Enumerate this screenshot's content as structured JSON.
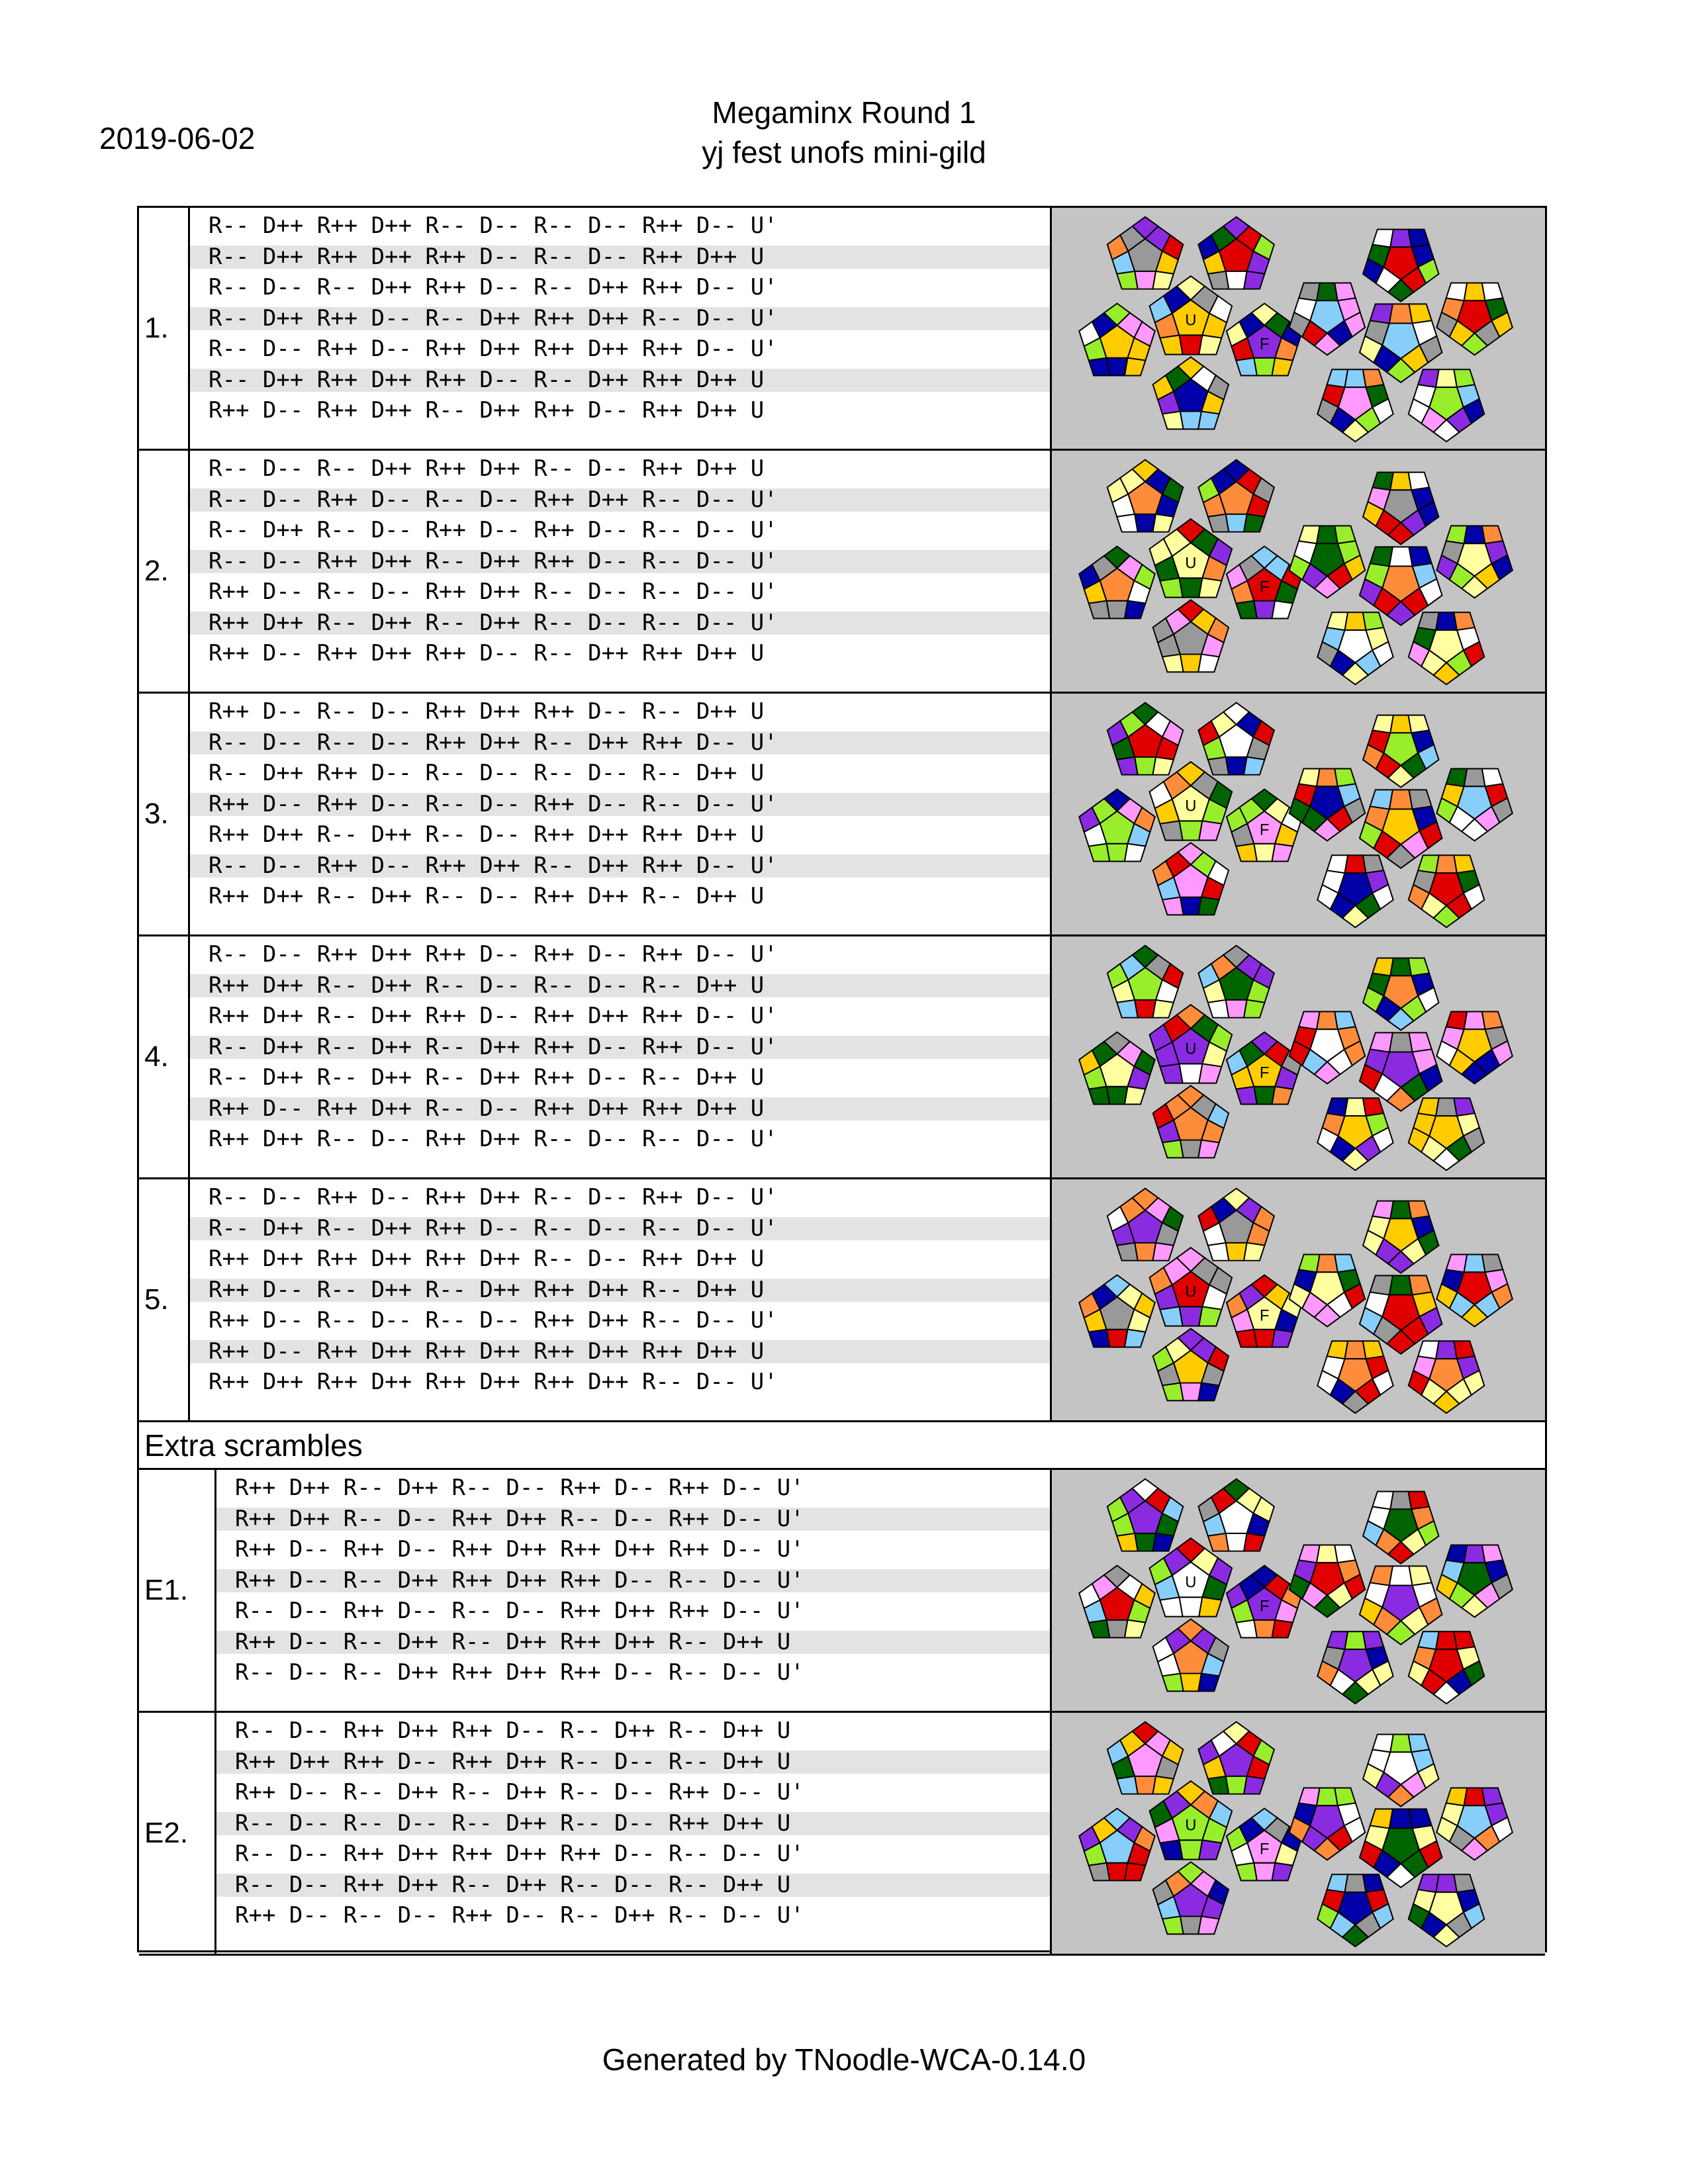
{
  "header": {
    "date": "2019-06-02",
    "title_line1": "Megaminx Round 1",
    "title_line2": "yj fest unofs mini-gild"
  },
  "extra_label": "Extra scrambles",
  "footer": "Generated by TNoodle-WCA-0.14.0",
  "face_labels": {
    "up": "U",
    "front": "F"
  },
  "colors": {
    "picture_bg": "#c4c4c4",
    "shade": "#e3e3e3",
    "palette": [
      "#ffffff",
      "#e00000",
      "#0000a8",
      "#8a2be2",
      "#ffcc00",
      "#006400",
      "#ff8c3a",
      "#87cefa",
      "#98ee2a",
      "#ff99ff",
      "#ffffa0",
      "#999999"
    ]
  },
  "scrambles": [
    {
      "label": "1.",
      "up_face_color": "#ffcc00",
      "front_face_color": "#8a2be2",
      "lines": [
        "R-- D++ R++ D++ R-- D-- R-- D-- R++ D-- U'",
        "R-- D++ R++ D++ R++ D-- R-- D-- R++ D++ U",
        "R-- D-- R-- D++ R++ D-- R-- D++ R++ D-- U'",
        "R-- D++ R++ D-- R-- D++ R++ D++ R-- D-- U'",
        "R-- D-- R++ D-- R++ D++ R++ D++ R++ D-- U'",
        "R-- D++ R++ D++ R++ D-- R-- D++ R++ D++ U",
        "R++ D-- R++ D++ R-- D++ R++ D-- R++ D++ U"
      ]
    },
    {
      "label": "2.",
      "up_face_color": "#ffffa0",
      "front_face_color": "#e00000",
      "lines": [
        "R-- D-- R-- D++ R++ D++ R-- D-- R++ D++ U",
        "R-- D-- R++ D-- R-- D-- R++ D++ R-- D-- U'",
        "R-- D++ R-- D-- R++ D-- R++ D-- R-- D-- U'",
        "R-- D-- R++ D++ R-- D++ R++ D-- R-- D-- U'",
        "R++ D-- R-- D-- R++ D++ R-- D-- R-- D-- U'",
        "R++ D++ R-- D++ R-- D++ R-- D-- R-- D-- U'",
        "R++ D-- R++ D++ R++ D-- R-- D++ R++ D++ U"
      ]
    },
    {
      "label": "3.",
      "up_face_color": "#ffffa0",
      "front_face_color": "#ff99ff",
      "lines": [
        "R++ D-- R-- D-- R++ D++ R++ D-- R-- D++ U",
        "R-- D-- R-- D-- R++ D++ R-- D++ R++ D-- U'",
        "R-- D++ R++ D-- R-- D-- R-- D-- R-- D++ U",
        "R++ D-- R++ D-- R-- D-- R++ D-- R-- D-- U'",
        "R++ D++ R-- D++ R-- D-- R++ D++ R++ D++ U",
        "R-- D-- R++ D-- R++ D++ R-- D++ R++ D-- U'",
        "R++ D++ R-- D++ R-- D-- R++ D++ R-- D++ U"
      ]
    },
    {
      "label": "4.",
      "up_face_color": "#8a2be2",
      "front_face_color": "#ffcc00",
      "lines": [
        "R-- D-- R++ D++ R++ D-- R++ D-- R++ D-- U'",
        "R++ D++ R-- D++ R-- D-- R-- D-- R-- D++ U",
        "R++ D++ R-- D++ R++ D-- R++ D++ R++ D-- U'",
        "R-- D++ R-- D++ R-- D++ R++ D-- R++ D-- U'",
        "R-- D++ R-- D++ R-- D++ R++ D-- R-- D++ U",
        "R++ D-- R++ D++ R-- D-- R++ D++ R++ D++ U",
        "R++ D++ R-- D-- R++ D++ R-- D-- R-- D-- U'"
      ]
    },
    {
      "label": "5.",
      "up_face_color": "#e00000",
      "front_face_color": "#ffffa0",
      "lines": [
        "R-- D-- R++ D-- R++ D++ R-- D-- R++ D-- U'",
        "R-- D++ R-- D++ R++ D-- R-- D-- R-- D-- U'",
        "R++ D++ R++ D++ R++ D++ R-- D-- R++ D++ U",
        "R++ D-- R-- D++ R-- D++ R++ D++ R-- D++ U",
        "R++ D-- R-- D-- R-- D-- R++ D++ R-- D-- U'",
        "R++ D-- R++ D++ R++ D++ R++ D++ R++ D++ U",
        "R++ D++ R++ D++ R++ D++ R++ D++ R-- D-- U'"
      ]
    }
  ],
  "extra_scrambles": [
    {
      "label": "E1.",
      "up_face_color": "#ffffff",
      "front_face_color": "#8a2be2",
      "lines": [
        "R++ D++ R-- D++ R-- D-- R++ D-- R++ D-- U'",
        "R++ D++ R-- D-- R++ D++ R-- D-- R++ D-- U'",
        "R++ D-- R++ D-- R++ D++ R++ D++ R++ D-- U'",
        "R++ D-- R-- D++ R++ D++ R++ D-- R-- D-- U'",
        "R-- D-- R++ D-- R-- D-- R++ D++ R++ D-- U'",
        "R++ D-- R-- D++ R-- D++ R++ D++ R-- D++ U",
        "R-- D-- R-- D++ R++ D++ R++ D-- R-- D-- U'"
      ]
    },
    {
      "label": "E2.",
      "up_face_color": "#98ee2a",
      "front_face_color": "#ff99ff",
      "lines": [
        "R-- D-- R++ D++ R++ D-- R-- D++ R-- D++ U",
        "R++ D++ R++ D-- R++ D++ R-- D-- R-- D++ U",
        "R++ D-- R-- D++ R-- D++ R-- D-- R++ D-- U'",
        "R-- D-- R-- D-- R-- D++ R-- D-- R++ D++ U",
        "R-- D-- R++ D++ R++ D++ R++ D-- R-- D-- U'",
        "R-- D-- R++ D++ R-- D++ R-- D-- R-- D++ U",
        "R++ D-- R-- D-- R++ D-- R-- D++ R-- D-- U'"
      ]
    }
  ]
}
